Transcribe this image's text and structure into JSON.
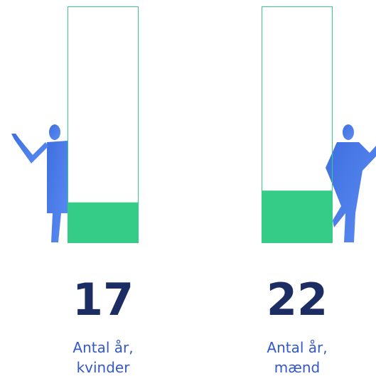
{
  "chart_data": {
    "type": "bar",
    "categories": [
      "Antal år, kvinder",
      "Antal år, mænd"
    ],
    "values": [
      17,
      22
    ],
    "color": "#34cc87",
    "ylim": [
      0,
      100
    ]
  }
}
